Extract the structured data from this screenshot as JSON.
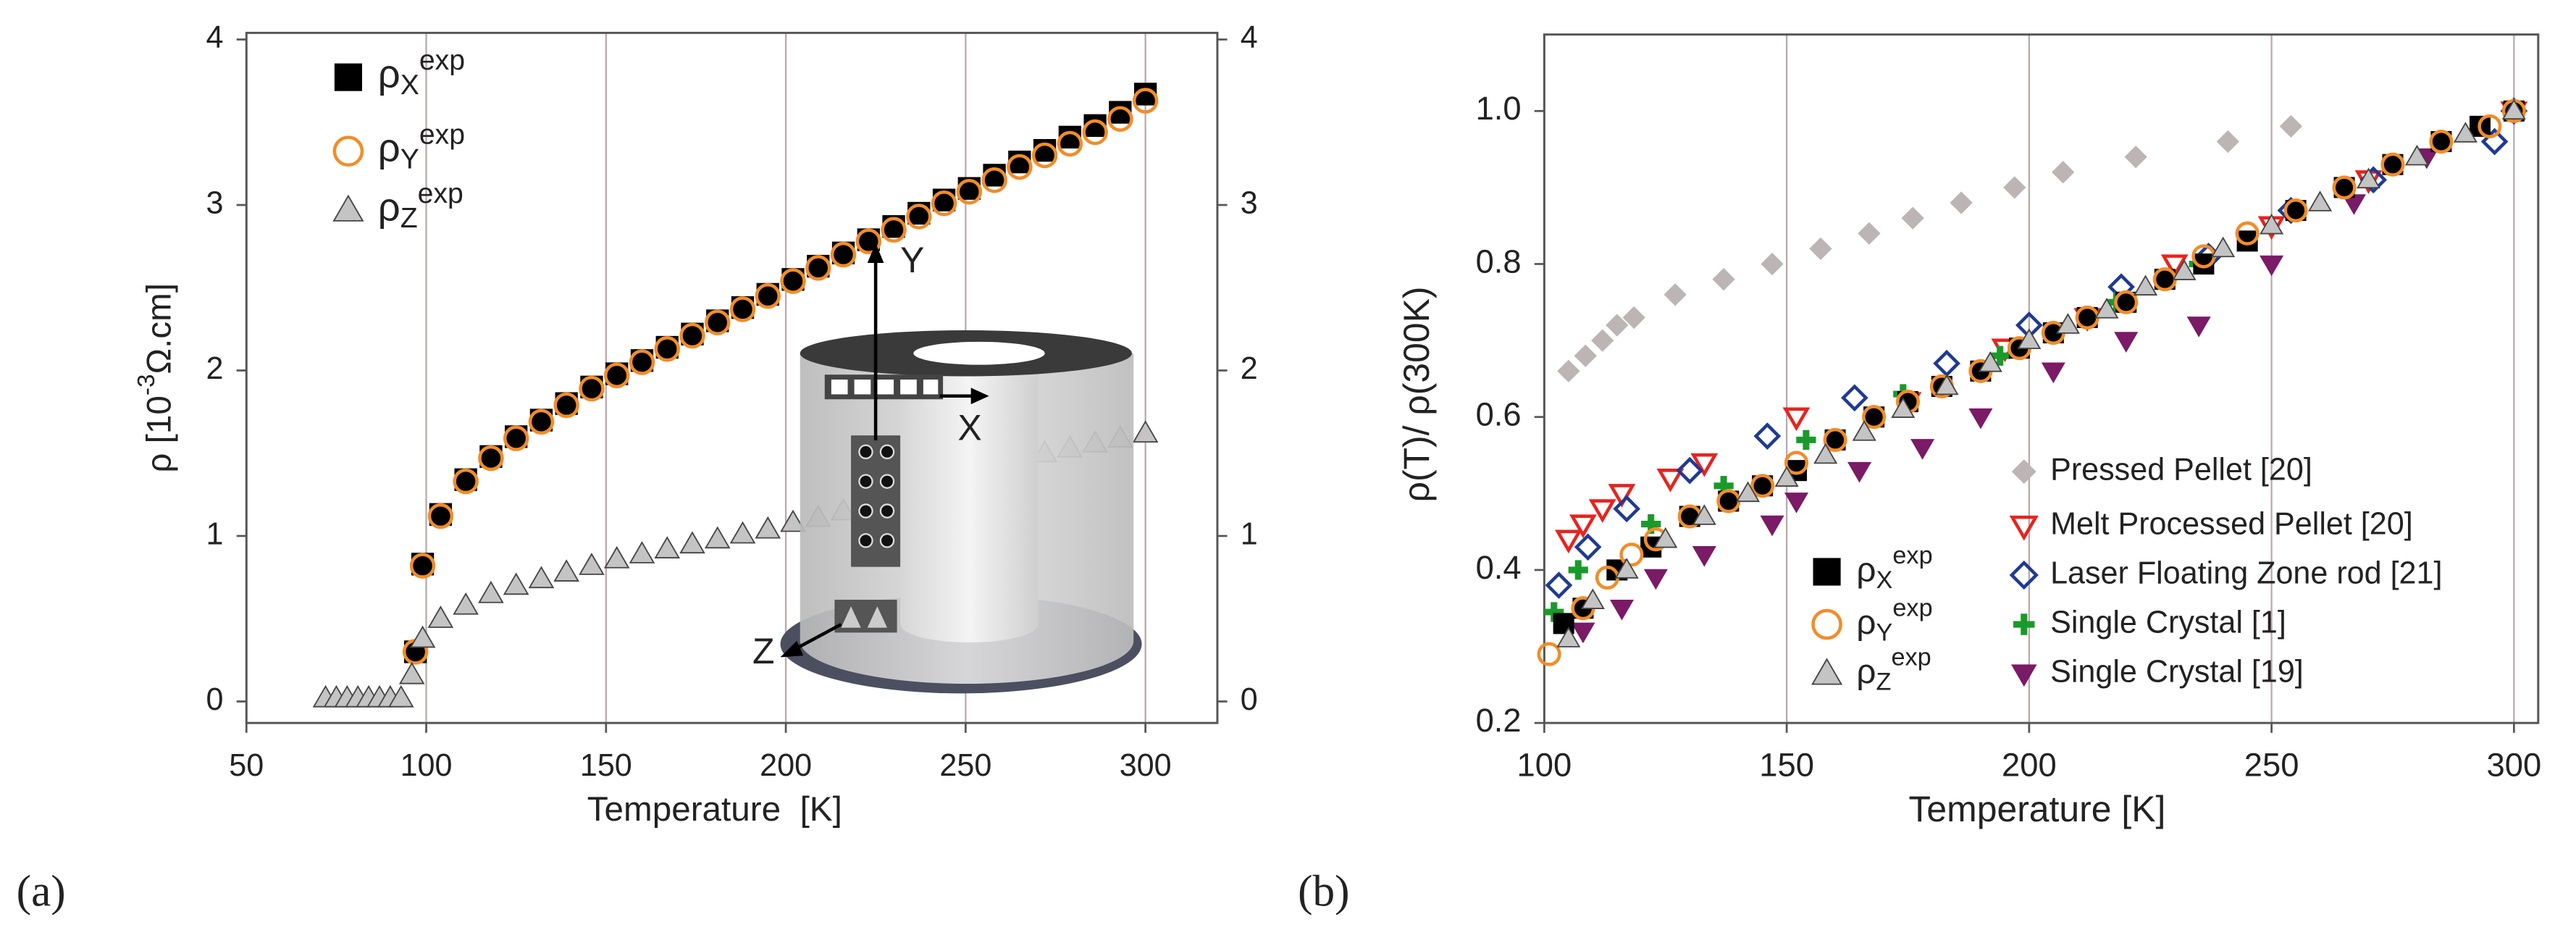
{
  "chart_data": [
    {
      "type": "scatter",
      "panel_label": "(a)",
      "x_label": "Temperature  [K]",
      "y_label": "ρ [10-3Ω.cm]",
      "xlim": [
        50,
        320
      ],
      "xticks": [
        50,
        100,
        150,
        200,
        250,
        300
      ],
      "ylim": [
        -0.13,
        4.04
      ],
      "yticks": [
        0,
        1,
        2,
        3,
        4
      ],
      "y2lim": [
        -0.13,
        4.04
      ],
      "y2ticks": [
        0,
        1,
        2,
        3,
        4
      ],
      "grid": true,
      "annotations": [
        "Y",
        "X",
        "Z"
      ],
      "series": [
        {
          "name": "ρXexp",
          "marker": "square",
          "color": "#000000",
          "filled": true,
          "x": [
            97,
            99,
            104,
            111,
            118,
            125,
            132,
            139,
            146,
            153,
            160,
            167,
            174,
            181,
            188,
            195,
            202,
            209,
            216,
            223,
            230,
            237,
            244,
            251,
            258,
            265,
            272,
            279,
            286,
            293,
            300
          ],
          "values": [
            0.3,
            0.83,
            1.13,
            1.34,
            1.48,
            1.6,
            1.7,
            1.8,
            1.9,
            1.98,
            2.06,
            2.14,
            2.22,
            2.3,
            2.38,
            2.46,
            2.55,
            2.63,
            2.71,
            2.79,
            2.87,
            2.95,
            3.03,
            3.1,
            3.18,
            3.26,
            3.33,
            3.41,
            3.48,
            3.56,
            3.67
          ]
        },
        {
          "name": "ρYexp",
          "marker": "circle",
          "color": "#f28c28",
          "filled": false,
          "x": [
            97,
            99,
            104,
            111,
            118,
            125,
            132,
            139,
            146,
            153,
            160,
            167,
            174,
            181,
            188,
            195,
            202,
            209,
            216,
            223,
            230,
            237,
            244,
            251,
            258,
            265,
            272,
            279,
            286,
            293,
            300
          ],
          "values": [
            0.3,
            0.82,
            1.12,
            1.33,
            1.47,
            1.59,
            1.69,
            1.79,
            1.89,
            1.97,
            2.05,
            2.13,
            2.21,
            2.29,
            2.37,
            2.45,
            2.54,
            2.62,
            2.7,
            2.78,
            2.85,
            2.93,
            3.01,
            3.08,
            3.15,
            3.23,
            3.3,
            3.37,
            3.44,
            3.52,
            3.63
          ]
        },
        {
          "name": "ρZexp",
          "marker": "triangle-up",
          "color": "#c4c4c4",
          "filled": true,
          "x": [
            72,
            75,
            78,
            81,
            84,
            87,
            90,
            93,
            96,
            99,
            104,
            111,
            118,
            125,
            132,
            139,
            146,
            153,
            160,
            167,
            174,
            181,
            188,
            195,
            202,
            209,
            216,
            223,
            230,
            237,
            244,
            251,
            258,
            265,
            272,
            279,
            286,
            293,
            300
          ],
          "values": [
            0.02,
            0.02,
            0.02,
            0.02,
            0.02,
            0.02,
            0.02,
            0.02,
            0.16,
            0.38,
            0.5,
            0.58,
            0.65,
            0.7,
            0.74,
            0.78,
            0.82,
            0.86,
            0.89,
            0.92,
            0.95,
            0.98,
            1.01,
            1.04,
            1.08,
            1.11,
            1.15,
            1.19,
            1.23,
            1.27,
            1.31,
            1.35,
            1.39,
            1.43,
            1.5,
            1.53,
            1.56,
            1.59,
            1.62
          ]
        }
      ]
    },
    {
      "type": "scatter",
      "panel_label": "(b)",
      "x_label": "Temperature [K]",
      "y_label": "ρ(T)/ ρ(300K)",
      "xlim": [
        100,
        305
      ],
      "xticks": [
        100,
        150,
        200,
        250,
        300
      ],
      "ylim": [
        0.2,
        1.1
      ],
      "yticks": [
        0.2,
        0.4,
        0.6,
        0.8,
        {
          "value": 1,
          "label": "1.0"
        }
      ],
      "grid": true,
      "series": [
        {
          "name": "Pressed Pellet [20]",
          "marker": "diamond",
          "color": "#bdb5b5",
          "filled": true,
          "x": [
            105,
            108.5,
            112,
            115,
            118.5,
            127,
            137,
            147,
            157,
            167,
            176,
            186,
            197,
            207,
            222,
            241,
            254
          ],
          "values": [
            0.66,
            0.68,
            0.7,
            0.72,
            0.73,
            0.76,
            0.78,
            0.8,
            0.82,
            0.84,
            0.86,
            0.88,
            0.9,
            0.92,
            0.94,
            0.96,
            0.98
          ]
        },
        {
          "name": "Melt Processed Pellet [20]",
          "marker": "triangle-down",
          "color": "#e8231e",
          "filled": false,
          "x": [
            105,
            108,
            112,
            116,
            126,
            133,
            152,
            175,
            195,
            212,
            230,
            250,
            270,
            300
          ],
          "values": [
            0.44,
            0.46,
            0.48,
            0.5,
            0.52,
            0.54,
            0.6,
            0.62,
            0.69,
            0.73,
            0.8,
            0.85,
            0.91,
            1.0
          ]
        },
        {
          "name": "Laser Floating Zone rod [21]",
          "marker": "diamond",
          "color": "#1f3a93",
          "filled": false,
          "x": [
            103,
            109,
            117,
            130,
            146,
            164,
            183,
            200,
            219,
            237,
            254,
            271,
            296,
            300
          ],
          "values": [
            0.38,
            0.43,
            0.48,
            0.53,
            0.575,
            0.625,
            0.67,
            0.72,
            0.77,
            0.81,
            0.87,
            0.91,
            0.96,
            1.0
          ]
        },
        {
          "name": "Single Crystal [1]",
          "marker": "plus",
          "color": "#1a9a2a",
          "filled": true,
          "x": [
            102,
            107,
            122,
            137,
            154,
            174,
            194,
            218,
            235,
            300
          ],
          "values": [
            0.345,
            0.4,
            0.46,
            0.51,
            0.57,
            0.63,
            0.68,
            0.75,
            0.8,
            1.0
          ]
        },
        {
          "name": "Single Crystal [19]",
          "marker": "triangle-down",
          "color": "#7b1a66",
          "filled": true,
          "x": [
            108,
            116,
            123,
            133,
            147,
            152,
            165,
            178,
            190,
            205,
            220,
            235,
            250,
            267,
            282,
            300
          ],
          "values": [
            0.32,
            0.35,
            0.39,
            0.42,
            0.46,
            0.49,
            0.53,
            0.56,
            0.6,
            0.66,
            0.7,
            0.72,
            0.8,
            0.88,
            0.94,
            1.0
          ]
        },
        {
          "name": "ρXexp",
          "marker": "square",
          "color": "#000000",
          "filled": true,
          "x": [
            104,
            108,
            115,
            122,
            130,
            138,
            145,
            152,
            160,
            168,
            175,
            182,
            190,
            198,
            205,
            212,
            220,
            228,
            236,
            245,
            255,
            265,
            275,
            285,
            293,
            300
          ],
          "values": [
            0.33,
            0.35,
            0.4,
            0.43,
            0.47,
            0.49,
            0.51,
            0.53,
            0.57,
            0.6,
            0.62,
            0.64,
            0.66,
            0.69,
            0.71,
            0.73,
            0.75,
            0.78,
            0.8,
            0.83,
            0.87,
            0.9,
            0.93,
            0.96,
            0.98,
            1.0
          ]
        },
        {
          "name": "ρYexp",
          "marker": "circle",
          "color": "#f28c28",
          "filled": false,
          "x": [
            101,
            108,
            113,
            118,
            123,
            130,
            138,
            145,
            152,
            160,
            168,
            175,
            182,
            190,
            198,
            205,
            212,
            220,
            228,
            236,
            245,
            255,
            265,
            275,
            285,
            295,
            300
          ],
          "values": [
            0.29,
            0.35,
            0.39,
            0.42,
            0.44,
            0.47,
            0.49,
            0.51,
            0.54,
            0.57,
            0.6,
            0.62,
            0.64,
            0.66,
            0.69,
            0.71,
            0.73,
            0.75,
            0.78,
            0.81,
            0.84,
            0.87,
            0.9,
            0.93,
            0.96,
            0.98,
            1.0
          ]
        },
        {
          "name": "ρZexp",
          "marker": "triangle-up",
          "color": "#c4c4c4",
          "filled": true,
          "x": [
            105,
            110,
            117,
            125,
            133,
            142,
            150,
            158,
            166,
            174,
            183,
            192,
            200,
            208,
            216,
            224,
            232,
            240,
            250,
            260,
            270,
            280,
            290,
            300
          ],
          "values": [
            0.31,
            0.36,
            0.4,
            0.44,
            0.47,
            0.5,
            0.52,
            0.55,
            0.58,
            0.61,
            0.64,
            0.67,
            0.7,
            0.72,
            0.74,
            0.77,
            0.79,
            0.82,
            0.85,
            0.88,
            0.91,
            0.94,
            0.97,
            1.0
          ]
        }
      ]
    }
  ]
}
